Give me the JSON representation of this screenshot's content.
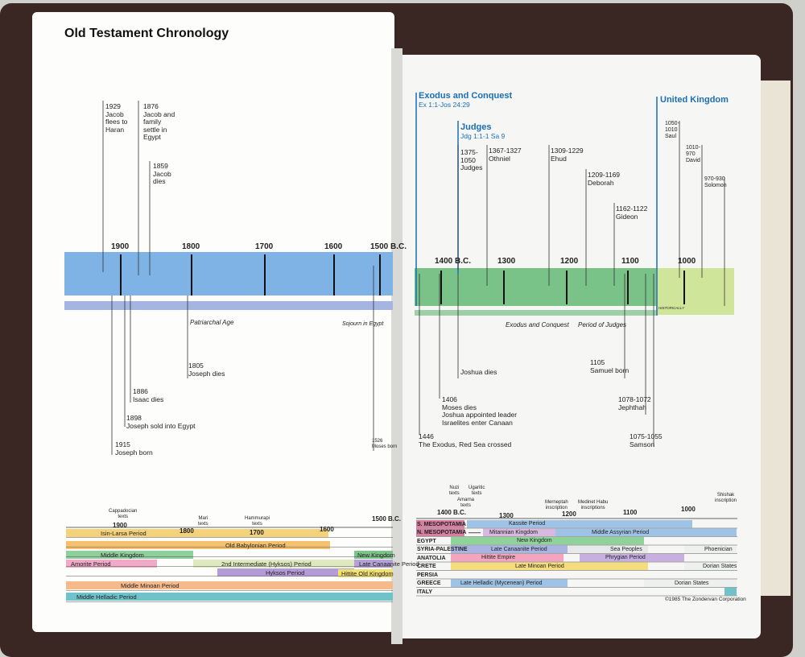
{
  "left_page": {
    "title": "Old Testament Chronology",
    "years": [
      "1900",
      "1800",
      "1700",
      "1600",
      "1500 B.C."
    ],
    "events_above": [
      "1929\nJacob\nflees to\nHaran",
      "1876\nJacob and\nfamily\nsettle in\nEgypt",
      "1859\nJacob\ndies"
    ],
    "events_below": [
      "1805\nJoseph dies",
      "1886\nIsaac dies",
      "1898\nJoseph sold into Egypt",
      "1915\nJoseph born",
      "1526\nMoses born"
    ],
    "periods": [
      "Patriarchal Age",
      "Sojourn in Egypt"
    ],
    "world_chart": {
      "notes": [
        "Cappadocian\ntexts",
        "Mari\ntexts",
        "Hammurapi\ntexts"
      ],
      "years": [
        "1900",
        "1800",
        "1700",
        "1600",
        "1500 B.C."
      ],
      "bands": [
        {
          "label": "Isin-Larsa Period",
          "color": "#f3d27a"
        },
        {
          "label": "Old Babylonian Period",
          "color": "#f6c16e"
        },
        {
          "label": "Middle Kingdom",
          "color": "#8fcf9c"
        },
        {
          "label": "New Kingdom",
          "color": "#7cc48a"
        },
        {
          "label": "Amorite Period",
          "color": "#f2a9c8"
        },
        {
          "label": "2nd Intermediate (Hyksos) Period",
          "color": "#dfe9bf"
        },
        {
          "label": "Late Canaanite Period",
          "color": "#b5a0d8"
        },
        {
          "label": "Hyksos Period",
          "color": "#b59ad8"
        },
        {
          "label": "Hittite Old Kingdom",
          "color": "#f2e070"
        },
        {
          "label": "Middle Minoan Period",
          "color": "#f6b98a"
        },
        {
          "label": "Middle Helladic Period",
          "color": "#6fc2c9"
        }
      ]
    }
  },
  "right_page": {
    "eras": [
      {
        "title": "Exodus and Conquest",
        "ref": "Ex 1:1-Jos 24:29"
      },
      {
        "title": "Judges",
        "ref": "Jdg 1:1-1 Sa 9"
      },
      {
        "title": "United Kingdom"
      }
    ],
    "years": [
      "1400 B.C.",
      "1300",
      "1200",
      "1100",
      "1000"
    ],
    "events_above": [
      "1375-\n1050\nJudges",
      "1367-1327\nOthniel",
      "1309-1229\nEhud",
      "1209-1169\nDeborah",
      "1162-1122\nGideon",
      "1050-\n1010\nSaul",
      "1010-\n970\nDavid",
      "970-930\nSolomon"
    ],
    "events_below": [
      "Joshua dies",
      "1105\nSamuel born",
      "1406\nMoses dies\nJoshua appointed leader\nIsraelites enter Canaan",
      "1078-1072\nJephthah",
      "1446\nThe Exodus, Red Sea crossed",
      "1075-1055\nSamson"
    ],
    "periods": [
      "Exodus and Conquest",
      "Period of Judges",
      "HISTORICALLY"
    ],
    "world_chart": {
      "notes": [
        "Nuzi\ntexts",
        "Ugaritic\ntexts",
        "Amarna\ntexts",
        "Merneptah\ninscription",
        "Medinet Habu\ninscriptions",
        "Shishak\ninscription"
      ],
      "years": [
        "1400 B.C.",
        "1300",
        "1200",
        "1100",
        "1000"
      ],
      "regions": [
        "S. MESOPOTAMIA",
        "N. MESOPOTAMIA",
        "EGYPT",
        "SYRIA-PALESTINE",
        "ANATOLIA",
        "CRETE",
        "PERSIA",
        "GREECE",
        "ITALY"
      ],
      "bands": [
        {
          "label": "Kassite Period",
          "color": "#9ec3e6"
        },
        {
          "label": "Mitannian Kingdom",
          "color": "#d6b8e0"
        },
        {
          "label": "Middle Assyrian Period",
          "color": "#9ec3e6"
        },
        {
          "label": "New Kingdom",
          "color": "#8fd29a"
        },
        {
          "label": "Late Canaanite Period",
          "color": "#a9b4e3"
        },
        {
          "label": "Sea Peoples",
          "color": "#e8e8e8"
        },
        {
          "label": "Phoenician",
          "color": "#eef0f0"
        },
        {
          "label": "Hittite Empire",
          "color": "#f3a5c0"
        },
        {
          "label": "Phrygian Period",
          "color": "#c7b0e0"
        },
        {
          "label": "Dorian States",
          "color": "#eef0f0"
        },
        {
          "label": "Late Minoan Period",
          "color": "#f5dc7c"
        },
        {
          "label": "Dorian States",
          "color": "#eef0f0"
        },
        {
          "label": "Late Helladic (Mycenean) Period",
          "color": "#9ec3e6"
        }
      ]
    },
    "copyright": "©1985 The Zondervan Corporation"
  }
}
